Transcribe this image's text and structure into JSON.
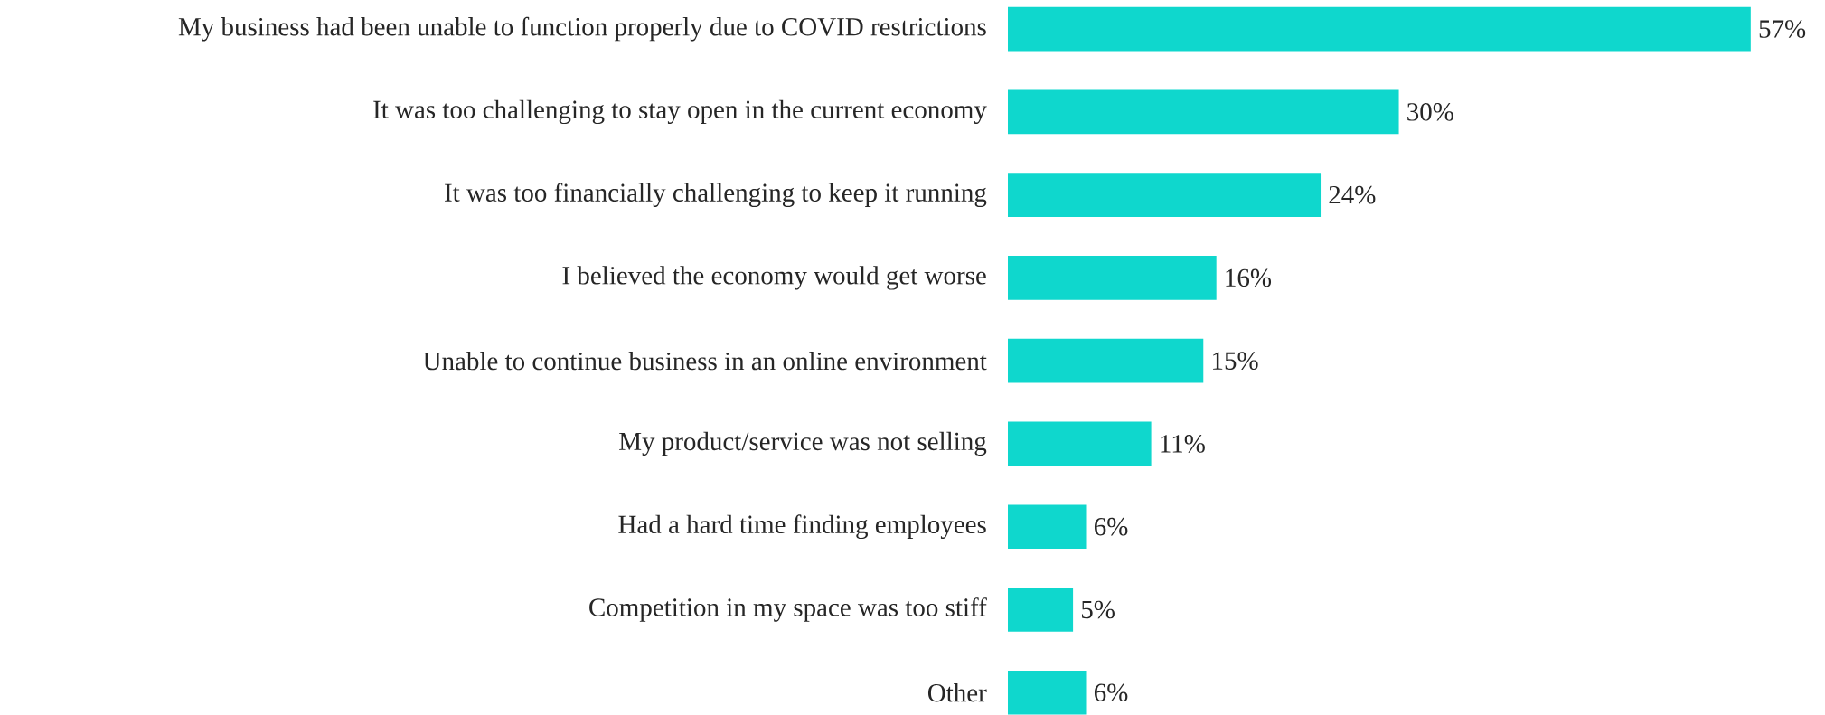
{
  "chart_data": {
    "type": "bar",
    "orientation": "horizontal",
    "color": "#0fd7cd",
    "categories": [
      "My business had been unable to function properly due to COVID restrictions",
      "It was too challenging to stay open in the current economy",
      "It was too financially challenging to keep it running",
      "I believed the economy would get worse",
      "Unable to continue business in an online environment",
      "My product/service was not selling",
      "Had a hard time finding employees",
      "Competition in my space was too stiff",
      "Other"
    ],
    "values": [
      57,
      30,
      24,
      16,
      15,
      11,
      6,
      5,
      6
    ],
    "value_labels": [
      "57%",
      "30%",
      "24%",
      "16%",
      "15%",
      "11%",
      "6%",
      "5%",
      "6%"
    ]
  }
}
